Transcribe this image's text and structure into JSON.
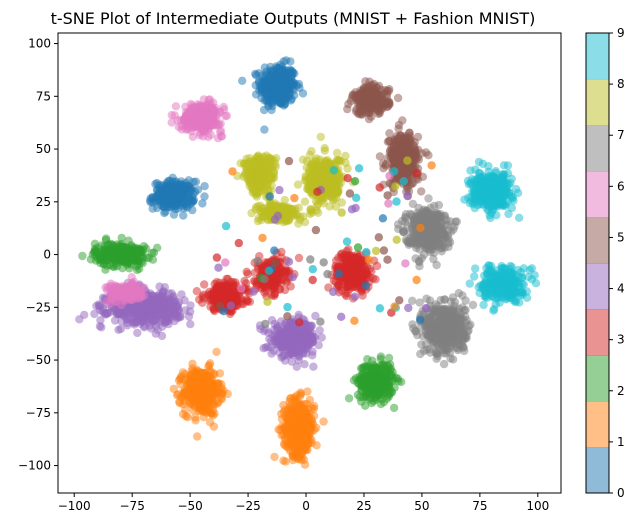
{
  "chart_data": {
    "type": "scatter",
    "title": "t-SNE Plot of Intermediate Outputs (MNIST + Fashion MNIST)",
    "xlabel": "",
    "ylabel": "",
    "xlim": [
      -107,
      110
    ],
    "ylim": [
      -113,
      105
    ],
    "xticks": [
      -100,
      -75,
      -50,
      -25,
      0,
      25,
      50,
      75,
      100
    ],
    "yticks": [
      -100,
      -75,
      -50,
      -25,
      0,
      25,
      50,
      75,
      100
    ],
    "grid": false,
    "point_alpha": 0.5,
    "colorbar": {
      "min": 0,
      "max": 9,
      "ticks": [
        0,
        1,
        2,
        3,
        4,
        5,
        6,
        7,
        8,
        9
      ],
      "colormap": "tab10",
      "colors": [
        "#1f77b4",
        "#ff7f0e",
        "#2ca02c",
        "#d62728",
        "#9467bd",
        "#8c564b",
        "#e377c2",
        "#7f7f7f",
        "#bcbd22",
        "#17becf"
      ]
    },
    "clusters": [
      {
        "label": 0,
        "center": [
          -12,
          80
        ],
        "spread": [
          7,
          9
        ]
      },
      {
        "label": 0,
        "center": [
          -57,
          28
        ],
        "spread": [
          8,
          6
        ]
      },
      {
        "label": 1,
        "center": [
          -45,
          -65
        ],
        "spread": [
          7,
          10
        ]
      },
      {
        "label": 1,
        "center": [
          -3,
          -82
        ],
        "spread": [
          6,
          12
        ]
      },
      {
        "label": 2,
        "center": [
          30,
          -60
        ],
        "spread": [
          7,
          8
        ]
      },
      {
        "label": 2,
        "center": [
          -80,
          0
        ],
        "spread": [
          10,
          5
        ]
      },
      {
        "label": 3,
        "center": [
          20,
          -8
        ],
        "spread": [
          7,
          8
        ]
      },
      {
        "label": 3,
        "center": [
          -15,
          -10
        ],
        "spread": [
          6,
          7
        ]
      },
      {
        "label": 3,
        "center": [
          -35,
          -20
        ],
        "spread": [
          8,
          6
        ]
      },
      {
        "label": 4,
        "center": [
          -5,
          -40
        ],
        "spread": [
          9,
          7
        ]
      },
      {
        "label": 4,
        "center": [
          -70,
          -25
        ],
        "spread": [
          14,
          7
        ]
      },
      {
        "label": 5,
        "center": [
          28,
          73
        ],
        "spread": [
          7,
          6
        ]
      },
      {
        "label": 5,
        "center": [
          42,
          45
        ],
        "spread": [
          6,
          11
        ]
      },
      {
        "label": 6,
        "center": [
          -45,
          65
        ],
        "spread": [
          8,
          6
        ]
      },
      {
        "label": 6,
        "center": [
          -78,
          -18
        ],
        "spread": [
          7,
          4
        ]
      },
      {
        "label": 7,
        "center": [
          60,
          -35
        ],
        "spread": [
          8,
          11
        ]
      },
      {
        "label": 7,
        "center": [
          52,
          12
        ],
        "spread": [
          8,
          9
        ]
      },
      {
        "label": 8,
        "center": [
          -20,
          38
        ],
        "spread": [
          6,
          8
        ]
      },
      {
        "label": 8,
        "center": [
          8,
          35
        ],
        "spread": [
          7,
          10
        ]
      },
      {
        "label": 8,
        "center": [
          -12,
          20
        ],
        "spread": [
          8,
          4
        ]
      },
      {
        "label": 9,
        "center": [
          80,
          30
        ],
        "spread": [
          8,
          8
        ]
      },
      {
        "label": 9,
        "center": [
          85,
          -14
        ],
        "spread": [
          8,
          7
        ]
      }
    ]
  }
}
